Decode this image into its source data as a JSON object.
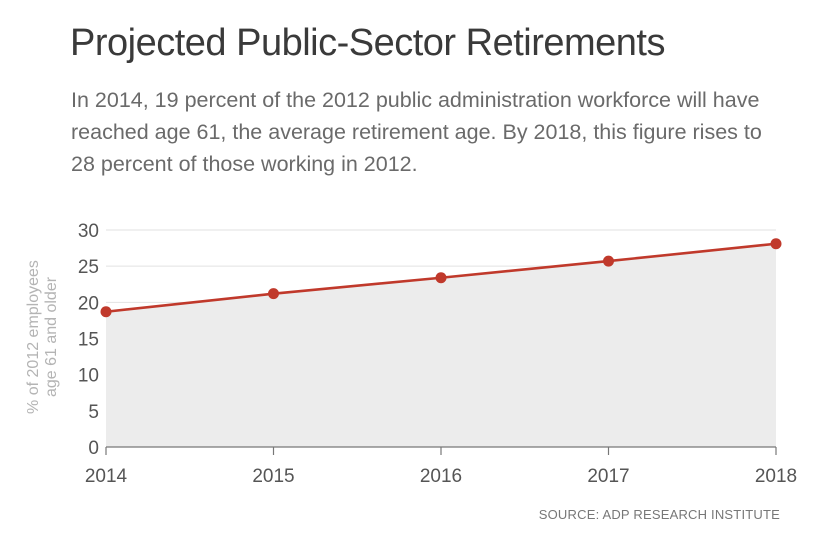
{
  "header": {
    "title": "Projected Public-Sector Retirements",
    "subtitle": "In 2014, 19 percent of the 2012 public administration workforce will have reached age 61, the average retirement age. By 2018, this figure rises to 28 percent of those working in 2012."
  },
  "source": "SOURCE: ADP RESEARCH INSTITUTE",
  "colors": {
    "line": "#c0392b",
    "fill": "#ececec",
    "grid": "#e2e2e2",
    "axis": "#777777"
  },
  "chart_data": {
    "type": "area",
    "x": [
      "2014",
      "2015",
      "2016",
      "2017",
      "2018"
    ],
    "values": [
      18.7,
      21.2,
      23.4,
      25.7,
      28.1
    ],
    "ylabel_line1": "% of 2012 employees",
    "ylabel_line2": "age 61 and older",
    "xlabel": "",
    "ylim": [
      0,
      30
    ],
    "yticks": [
      0,
      5,
      10,
      15,
      20,
      25,
      30
    ],
    "grid": true
  }
}
